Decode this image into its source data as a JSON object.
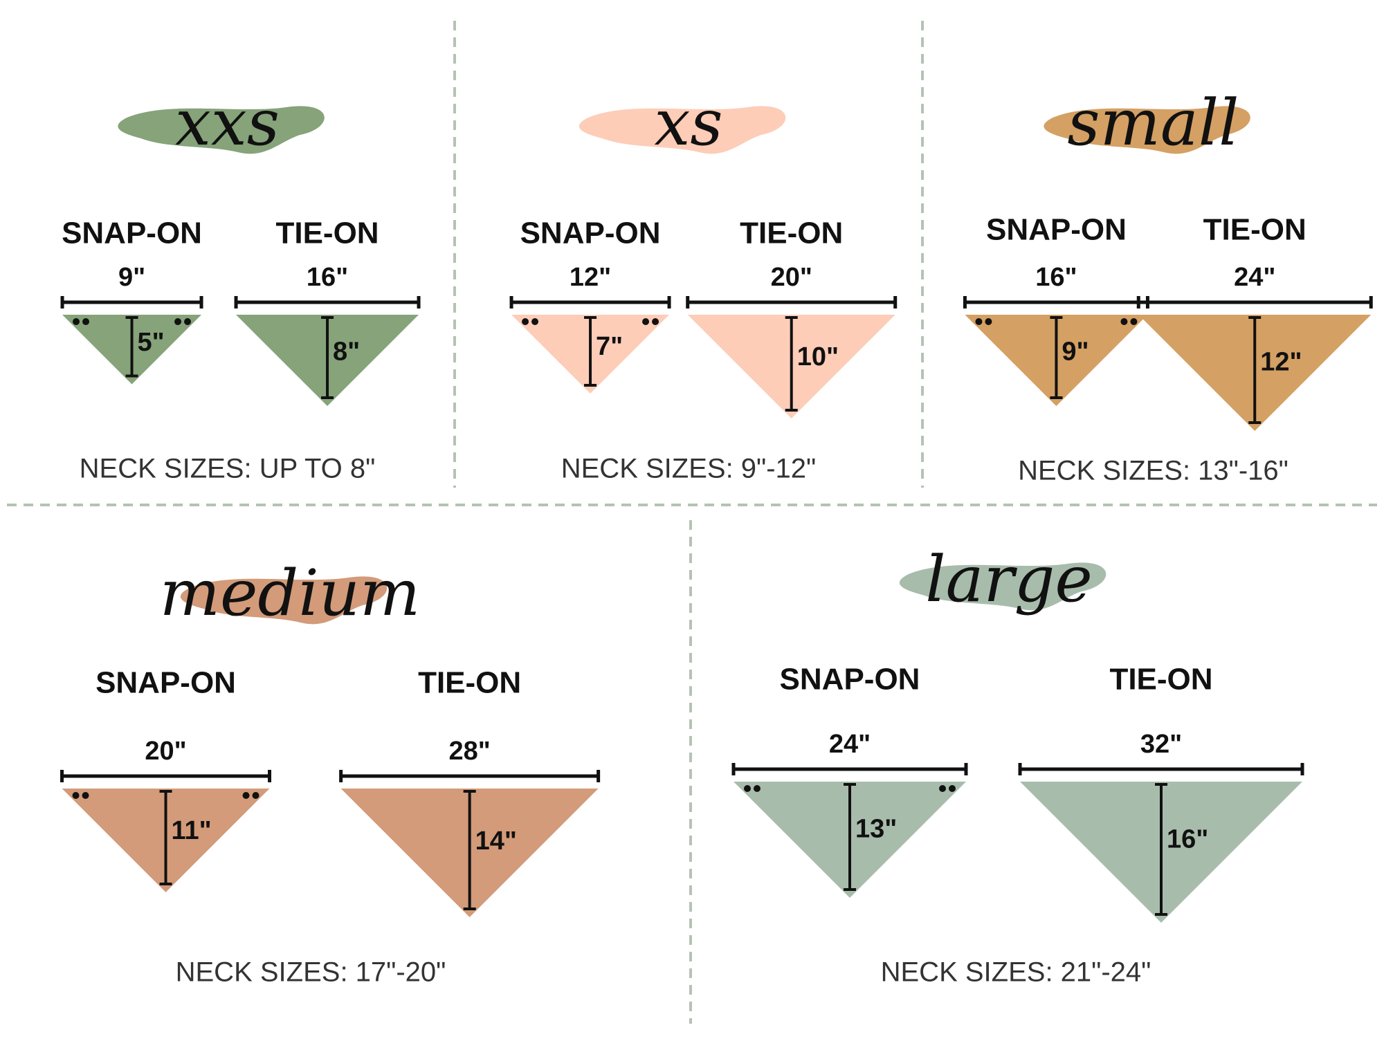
{
  "sizes": [
    {
      "name": "xxs",
      "color": "#86a37a",
      "snap_on": {
        "label": "SNAP-ON",
        "width": "9\"",
        "height": "5\""
      },
      "tie_on": {
        "label": "TIE-ON",
        "width": "16\"",
        "height": "8\""
      },
      "neck_sizes": "NECK SIZES: UP TO 8\""
    },
    {
      "name": "xs",
      "color": "#fdcdb8",
      "snap_on": {
        "label": "SNAP-ON",
        "width": "12\"",
        "height": "7\""
      },
      "tie_on": {
        "label": "TIE-ON",
        "width": "20\"",
        "height": "10\""
      },
      "neck_sizes": "NECK SIZES: 9\"-12\""
    },
    {
      "name": "small",
      "color": "#d4a063",
      "snap_on": {
        "label": "SNAP-ON",
        "width": "16\"",
        "height": "9\""
      },
      "tie_on": {
        "label": "TIE-ON",
        "width": "24\"",
        "height": "12\""
      },
      "neck_sizes": "NECK SIZES: 13\"-16\""
    },
    {
      "name": "medium",
      "color": "#d39b7a",
      "snap_on": {
        "label": "SNAP-ON",
        "width": "20\"",
        "height": "11\""
      },
      "tie_on": {
        "label": "TIE-ON",
        "width": "28\"",
        "height": "14\""
      },
      "neck_sizes": "NECK SIZES: 17\"-20\""
    },
    {
      "name": "large",
      "color": "#a8bcac",
      "snap_on": {
        "label": "SNAP-ON",
        "width": "24\"",
        "height": "13\""
      },
      "tie_on": {
        "label": "TIE-ON",
        "width": "32\"",
        "height": "16\""
      },
      "neck_sizes": "NECK SIZES: 21\"-24\""
    }
  ]
}
